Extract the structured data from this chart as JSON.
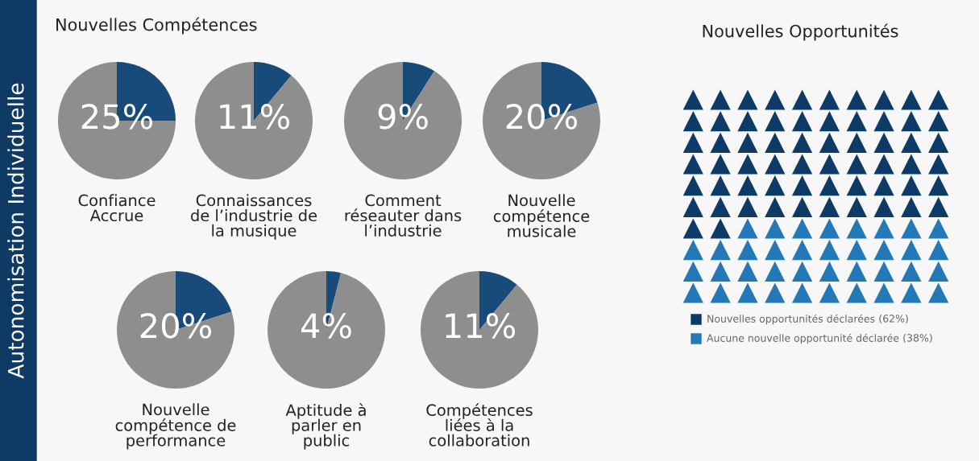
{
  "chart_data": [
    {
      "type": "other",
      "title": "Nouvelles Compétences",
      "annotations": [
        "Autonomisation Individuelle"
      ]
    },
    {
      "type": "pie",
      "xlabel": "Confiance\nAccrue",
      "categories": [
        null,
        null
      ],
      "values": [
        25,
        75
      ],
      "colors": [
        "#184a7a",
        "#8e8e8e"
      ],
      "value_labels": [
        "25%",
        null
      ]
    },
    {
      "type": "pie",
      "xlabel": "Connaissances\nde l’industrie de\nla musique",
      "categories": [
        null,
        null
      ],
      "values": [
        11,
        89
      ],
      "colors": [
        "#184a7a",
        "#8e8e8e"
      ],
      "value_labels": [
        "11%",
        null
      ]
    },
    {
      "type": "pie",
      "xlabel": "Comment\nréseauter dans\nl’industrie",
      "categories": [
        null,
        null
      ],
      "values": [
        9,
        91
      ],
      "colors": [
        "#184a7a",
        "#8e8e8e"
      ],
      "value_labels": [
        "9%",
        null
      ]
    },
    {
      "type": "pie",
      "xlabel": "Nouvelle\ncompétence\nmusicale",
      "categories": [
        null,
        null
      ],
      "values": [
        20,
        80
      ],
      "colors": [
        "#184a7a",
        "#8e8e8e"
      ],
      "value_labels": [
        "20%",
        null
      ]
    },
    {
      "type": "pie",
      "xlabel": "Nouvelle\ncompétence de\nperformance",
      "categories": [
        null,
        null
      ],
      "values": [
        20,
        80
      ],
      "colors": [
        "#184a7a",
        "#8e8e8e"
      ],
      "value_labels": [
        "20%",
        null
      ]
    },
    {
      "type": "pie",
      "xlabel": "Aptitude à\nparler en\npublic",
      "categories": [
        null,
        null
      ],
      "values": [
        4,
        96
      ],
      "colors": [
        "#184a7a",
        "#8e8e8e"
      ],
      "value_labels": [
        "4%",
        null
      ]
    },
    {
      "type": "pie",
      "xlabel": "Compétences\nliées à la\ncollaboration",
      "categories": [
        null,
        null
      ],
      "values": [
        11,
        89
      ],
      "colors": [
        "#184a7a",
        "#8e8e8e"
      ],
      "value_labels": [
        "11%",
        null
      ]
    },
    {
      "type": "other",
      "title": "Nouvelles Opportunités",
      "categories": [
        "Nouvelles opportunités déclarées",
        "Aucune nouvelle opportunité déclarée"
      ],
      "values": [
        62,
        38
      ],
      "value_labels": [
        "(62%)",
        "(38%)"
      ],
      "colors": [
        "#0d3a66",
        "#2378b8"
      ]
    }
  ]
}
